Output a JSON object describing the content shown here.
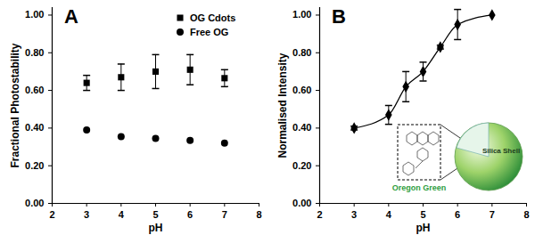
{
  "chart_data": [
    {
      "type": "scatter",
      "title": "A",
      "x_label": "pH",
      "y_label": "Fractional Photostability",
      "xlim": [
        2,
        8
      ],
      "xticks": [
        2,
        3,
        4,
        5,
        6,
        7,
        8
      ],
      "ylim": [
        0,
        1.04
      ],
      "yticks": [
        {
          "value": 0,
          "label": "0.00"
        },
        {
          "value": 0.2,
          "label": "0.20"
        },
        {
          "value": 0.4,
          "label": "0.40"
        },
        {
          "value": 0.6,
          "label": "0.60"
        },
        {
          "value": 0.8,
          "label": "0.80"
        },
        {
          "value": 1,
          "label": "1.00"
        }
      ],
      "legend": "upper right",
      "series": [
        {
          "name": "OG Cdots",
          "color": "#000000",
          "marker": "square",
          "x": [
            3,
            4,
            5,
            6,
            7
          ],
          "values": [
            0.64,
            0.67,
            0.7,
            0.71,
            0.665
          ],
          "error": [
            0.04,
            0.07,
            0.09,
            0.08,
            0.045
          ]
        },
        {
          "name": "Free OG",
          "color": "#000000",
          "marker": "circle",
          "x": [
            3,
            4,
            5,
            6,
            7
          ],
          "values": [
            0.39,
            0.355,
            0.345,
            0.335,
            0.32
          ]
        }
      ]
    },
    {
      "type": "line",
      "title": "B",
      "x_label": "pH",
      "y_label": "Normalised Intensity",
      "xlim": [
        2,
        8
      ],
      "xticks": [
        2,
        3,
        4,
        5,
        6,
        7,
        8
      ],
      "ylim": [
        0,
        1.04
      ],
      "yticks": [
        {
          "value": 0,
          "label": "0.00"
        },
        {
          "value": 0.2,
          "label": "0.20"
        },
        {
          "value": 0.4,
          "label": "0.40"
        },
        {
          "value": 0.6,
          "label": "0.60"
        },
        {
          "value": 0.8,
          "label": "0.80"
        },
        {
          "value": 1,
          "label": "1.00"
        }
      ],
      "annotations": [
        "Oregon Green",
        "Silica Shell"
      ],
      "series": [
        {
          "color": "#000000",
          "marker": "diamond",
          "line_style": "solid",
          "x": [
            3,
            4,
            4.5,
            5,
            5.5,
            6,
            7
          ],
          "values": [
            0.4,
            0.47,
            0.62,
            0.7,
            0.83,
            0.95,
            1.0
          ],
          "error": [
            0.01,
            0.05,
            0.08,
            0.05,
            0.01,
            0.08,
            0.0
          ]
        }
      ]
    }
  ]
}
